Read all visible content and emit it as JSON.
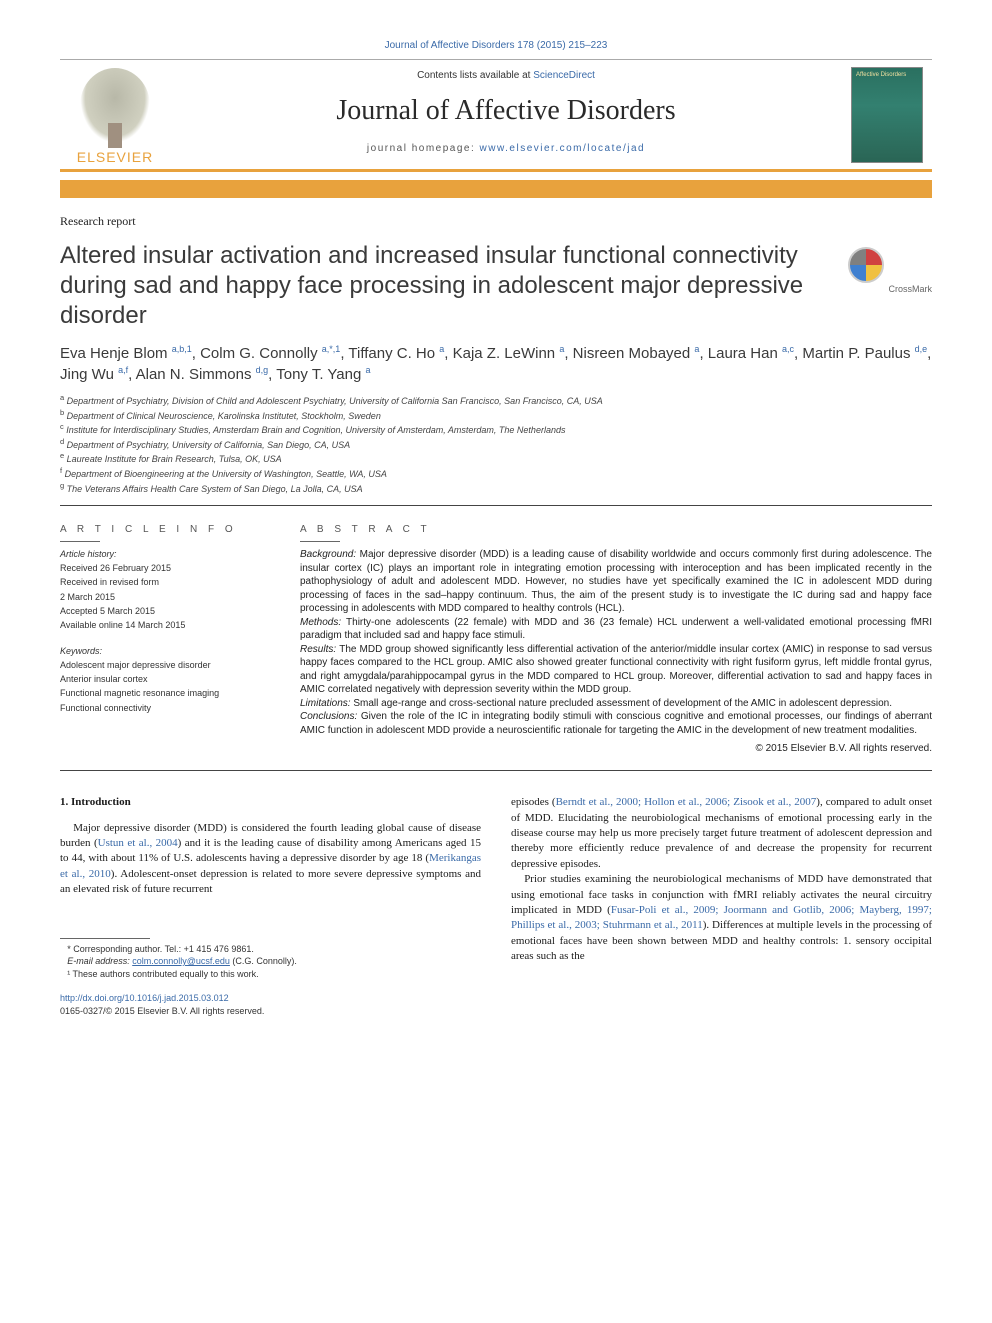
{
  "citation": "Journal of Affective Disorders 178 (2015) 215–223",
  "banner": {
    "contents_prefix": "Contents lists available at ",
    "contents_link": "ScienceDirect",
    "journal": "Journal of Affective Disorders",
    "homepage_prefix": "journal homepage: ",
    "homepage_url": "www.elsevier.com/locate/jad",
    "publisher": "ELSEVIER",
    "cover_label": "Affective Disorders"
  },
  "article": {
    "type": "Research report",
    "title": "Altered insular activation and increased insular functional connectivity during sad and happy face processing in adolescent major depressive disorder",
    "crossmark": "CrossMark",
    "authors_html": "Eva Henje Blom <sup>a,b,1</sup>, Colm G. Connolly <sup>a,*,1</sup>, Tiffany C. Ho <sup>a</sup>, Kaja Z. LeWinn <sup>a</sup>, Nisreen Mobayed <sup>a</sup>, Laura Han <sup>a,c</sup>, Martin P. Paulus <sup>d,e</sup>, Jing Wu <sup>a,f</sup>, Alan N. Simmons <sup>d,g</sup>, Tony T. Yang <sup>a</sup>",
    "affiliations": [
      "a Department of Psychiatry, Division of Child and Adolescent Psychiatry, University of California San Francisco, San Francisco, CA, USA",
      "b Department of Clinical Neuroscience, Karolinska Institutet, Stockholm, Sweden",
      "c Institute for Interdisciplinary Studies, Amsterdam Brain and Cognition, University of Amsterdam, Amsterdam, The Netherlands",
      "d Department of Psychiatry, University of California, San Diego, CA, USA",
      "e Laureate Institute for Brain Research, Tulsa, OK, USA",
      "f Department of Bioengineering at the University of Washington, Seattle, WA, USA",
      "g The Veterans Affairs Health Care System of San Diego, La Jolla, CA, USA"
    ]
  },
  "info": {
    "heading": "A R T I C L E   I N F O",
    "history_label": "Article history:",
    "history": [
      "Received 26 February 2015",
      "Received in revised form",
      "2 March 2015",
      "Accepted 5 March 2015",
      "Available online 14 March 2015"
    ],
    "keywords_label": "Keywords:",
    "keywords": [
      "Adolescent major depressive disorder",
      "Anterior insular cortex",
      "Functional magnetic resonance imaging",
      "Functional connectivity"
    ]
  },
  "abstract": {
    "heading": "A B S T R A C T",
    "sections": [
      {
        "label": "Background:",
        "text": "Major depressive disorder (MDD) is a leading cause of disability worldwide and occurs commonly first during adolescence. The insular cortex (IC) plays an important role in integrating emotion processing with interoception and has been implicated recently in the pathophysiology of adult and adolescent MDD. However, no studies have yet specifically examined the IC in adolescent MDD during processing of faces in the sad–happy continuum. Thus, the aim of the present study is to investigate the IC during sad and happy face processing in adolescents with MDD compared to healthy controls (HCL)."
      },
      {
        "label": "Methods:",
        "text": "Thirty-one adolescents (22 female) with MDD and 36 (23 female) HCL underwent a well-validated emotional processing fMRI paradigm that included sad and happy face stimuli."
      },
      {
        "label": "Results:",
        "text": "The MDD group showed significantly less differential activation of the anterior/middle insular cortex (AMIC) in response to sad versus happy faces compared to the HCL group. AMIC also showed greater functional connectivity with right fusiform gyrus, left middle frontal gyrus, and right amygdala/parahippocampal gyrus in the MDD compared to HCL group. Moreover, differential activation to sad and happy faces in AMIC correlated negatively with depression severity within the MDD group."
      },
      {
        "label": "Limitations:",
        "text": "Small age-range and cross-sectional nature precluded assessment of development of the AMIC in adolescent depression."
      },
      {
        "label": "Conclusions:",
        "text": "Given the role of the IC in integrating bodily stimuli with conscious cognitive and emotional processes, our findings of aberrant AMIC function in adolescent MDD provide a neuroscientific rationale for targeting the AMIC in the development of new treatment modalities."
      }
    ],
    "copyright": "© 2015 Elsevier B.V. All rights reserved."
  },
  "body": {
    "section_heading": "1.  Introduction",
    "col1_p1_a": "Major depressive disorder (MDD) is considered the fourth leading global cause of disease burden (",
    "col1_p1_ref1": "Ustun et al., 2004",
    "col1_p1_b": ") and it is the leading cause of disability among Americans aged 15 to 44, with about 11% of U.S. adolescents having a depressive disorder by age 18 (",
    "col1_p1_ref2": "Merikangas et al., 2010",
    "col1_p1_c": "). Adolescent-onset depression is related to more severe depressive symptoms and an elevated risk of future recurrent",
    "col2_p1_a": "episodes (",
    "col2_p1_ref1": "Berndt et al., 2000; Hollon et al., 2006; Zisook et al., 2007",
    "col2_p1_b": "), compared to adult onset of MDD. Elucidating the neurobiological mechanisms of emotional processing early in the disease course may help us more precisely target future treatment of adolescent depression and thereby more efficiently reduce prevalence of and decrease the propensity for recurrent depressive episodes.",
    "col2_p2_a": "Prior studies examining the neurobiological mechanisms of MDD have demonstrated that using emotional face tasks in conjunction with fMRI reliably activates the neural circuitry implicated in MDD (",
    "col2_p2_ref1": "Fusar-Poli et al., 2009; Joormann and Gotlib, 2006; Mayberg, 1997; Phillips et al., 2003; Stuhrmann et al., 2011",
    "col2_p2_b": "). Differences at multiple levels in the processing of emotional faces have been shown between MDD and healthy controls: 1. sensory occipital areas such as the"
  },
  "footnotes": {
    "corr": "* Corresponding author. Tel.: +1 415 476 9861.",
    "email_label": "E-mail address: ",
    "email": "colm.connolly@ucsf.edu",
    "email_suffix": " (C.G. Connolly).",
    "equal": "¹ These authors contributed equally to this work."
  },
  "doi": {
    "url": "http://dx.doi.org/10.1016/j.jad.2015.03.012",
    "issn_line": "0165-0327/© 2015 Elsevier B.V. All rights reserved."
  },
  "colors": {
    "link": "#3a6aa8",
    "orange": "#e8a23d",
    "text": "#1a1a1a"
  }
}
